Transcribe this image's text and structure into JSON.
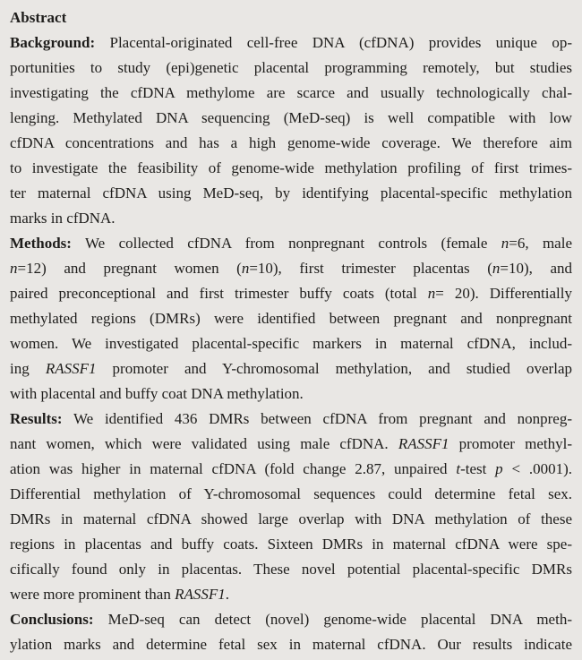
{
  "colors": {
    "background": "#e9e7e4",
    "text": "#1e1d1b"
  },
  "abstract": {
    "title": "Abstract",
    "paragraphs": [
      {
        "label": "Background",
        "lines": [
          {
            "runs": [
              {
                "t": "Background:",
                "b": true
              },
              {
                "t": " Placental-originated cell-free DNA (cfDNA) provides unique op-"
              }
            ]
          },
          {
            "runs": [
              {
                "t": "portunities to study (epi)genetic placental programming remotely, but studies"
              }
            ]
          },
          {
            "runs": [
              {
                "t": "investigating the cfDNA methylome are scarce and usually technologically chal-"
              }
            ]
          },
          {
            "runs": [
              {
                "t": "lenging. Methylated DNA sequencing (MeD-seq) is well compatible with low"
              }
            ]
          },
          {
            "runs": [
              {
                "t": "cfDNA concentrations and has a high genome-wide coverage. We therefore aim"
              }
            ]
          },
          {
            "runs": [
              {
                "t": "to investigate the feasibility of genome-wide methylation profiling of first trimes-"
              }
            ]
          },
          {
            "runs": [
              {
                "t": "ter maternal cfDNA using MeD-seq, by identifying placental-specific methylation"
              }
            ]
          },
          {
            "runs": [
              {
                "t": "marks in cfDNA."
              }
            ],
            "last": true
          }
        ]
      },
      {
        "label": "Methods",
        "lines": [
          {
            "runs": [
              {
                "t": "Methods:",
                "b": true
              },
              {
                "t": " We collected cfDNA from nonpregnant controls (female "
              },
              {
                "t": "n",
                "i": true
              },
              {
                "t": "=6, male"
              }
            ]
          },
          {
            "runs": [
              {
                "t": "n",
                "i": true
              },
              {
                "t": "=12) and pregnant women ("
              },
              {
                "t": "n",
                "i": true
              },
              {
                "t": "=10), first trimester placentas ("
              },
              {
                "t": "n",
                "i": true
              },
              {
                "t": "=10), and"
              }
            ]
          },
          {
            "runs": [
              {
                "t": "paired preconceptional and first trimester buffy coats (total "
              },
              {
                "t": "n",
                "i": true
              },
              {
                "t": "= 20). Differentially"
              }
            ]
          },
          {
            "runs": [
              {
                "t": "methylated regions (DMRs) were identified between pregnant and nonpregnant"
              }
            ]
          },
          {
            "runs": [
              {
                "t": "women. We investigated placental-specific markers in maternal cfDNA, includ-"
              }
            ]
          },
          {
            "runs": [
              {
                "t": "ing "
              },
              {
                "t": "RASSF1",
                "i": true
              },
              {
                "t": " promoter and Y-chromosomal methylation, and studied overlap"
              }
            ]
          },
          {
            "runs": [
              {
                "t": "with placental and buffy coat DNA methylation."
              }
            ],
            "last": true
          }
        ]
      },
      {
        "label": "Results",
        "lines": [
          {
            "runs": [
              {
                "t": "Results:",
                "b": true
              },
              {
                "t": " We identified 436 DMRs between cfDNA from pregnant and nonpreg-"
              }
            ]
          },
          {
            "runs": [
              {
                "t": "nant women, which were validated using male cfDNA. "
              },
              {
                "t": "RASSF1",
                "i": true
              },
              {
                "t": " promoter methyl-"
              }
            ]
          },
          {
            "runs": [
              {
                "t": "ation was higher in maternal cfDNA (fold change 2.87, unpaired "
              },
              {
                "t": "t",
                "i": true
              },
              {
                "t": "-test "
              },
              {
                "t": "p",
                "i": true
              },
              {
                "t": " < .0001)."
              }
            ]
          },
          {
            "runs": [
              {
                "t": "Differential methylation of Y-chromosomal sequences could determine fetal sex."
              }
            ]
          },
          {
            "runs": [
              {
                "t": "DMRs in maternal cfDNA showed large overlap with DNA methylation of these"
              }
            ]
          },
          {
            "runs": [
              {
                "t": "regions in placentas and buffy coats. Sixteen DMRs in maternal cfDNA were spe-"
              }
            ]
          },
          {
            "runs": [
              {
                "t": "cifically found only in placentas. These novel potential placental-specific DMRs"
              }
            ]
          },
          {
            "runs": [
              {
                "t": "were more prominent than "
              },
              {
                "t": "RASSF1",
                "i": true
              },
              {
                "t": "."
              }
            ],
            "last": true
          }
        ]
      },
      {
        "label": "Conclusions",
        "lines": [
          {
            "runs": [
              {
                "t": "Conclusions:",
                "b": true
              },
              {
                "t": " MeD-seq can detect (novel) genome-wide placental DNA meth-"
              }
            ]
          },
          {
            "runs": [
              {
                "t": "ylation marks and determine fetal sex in maternal cfDNA. Our results indicate"
              }
            ]
          }
        ]
      }
    ]
  }
}
